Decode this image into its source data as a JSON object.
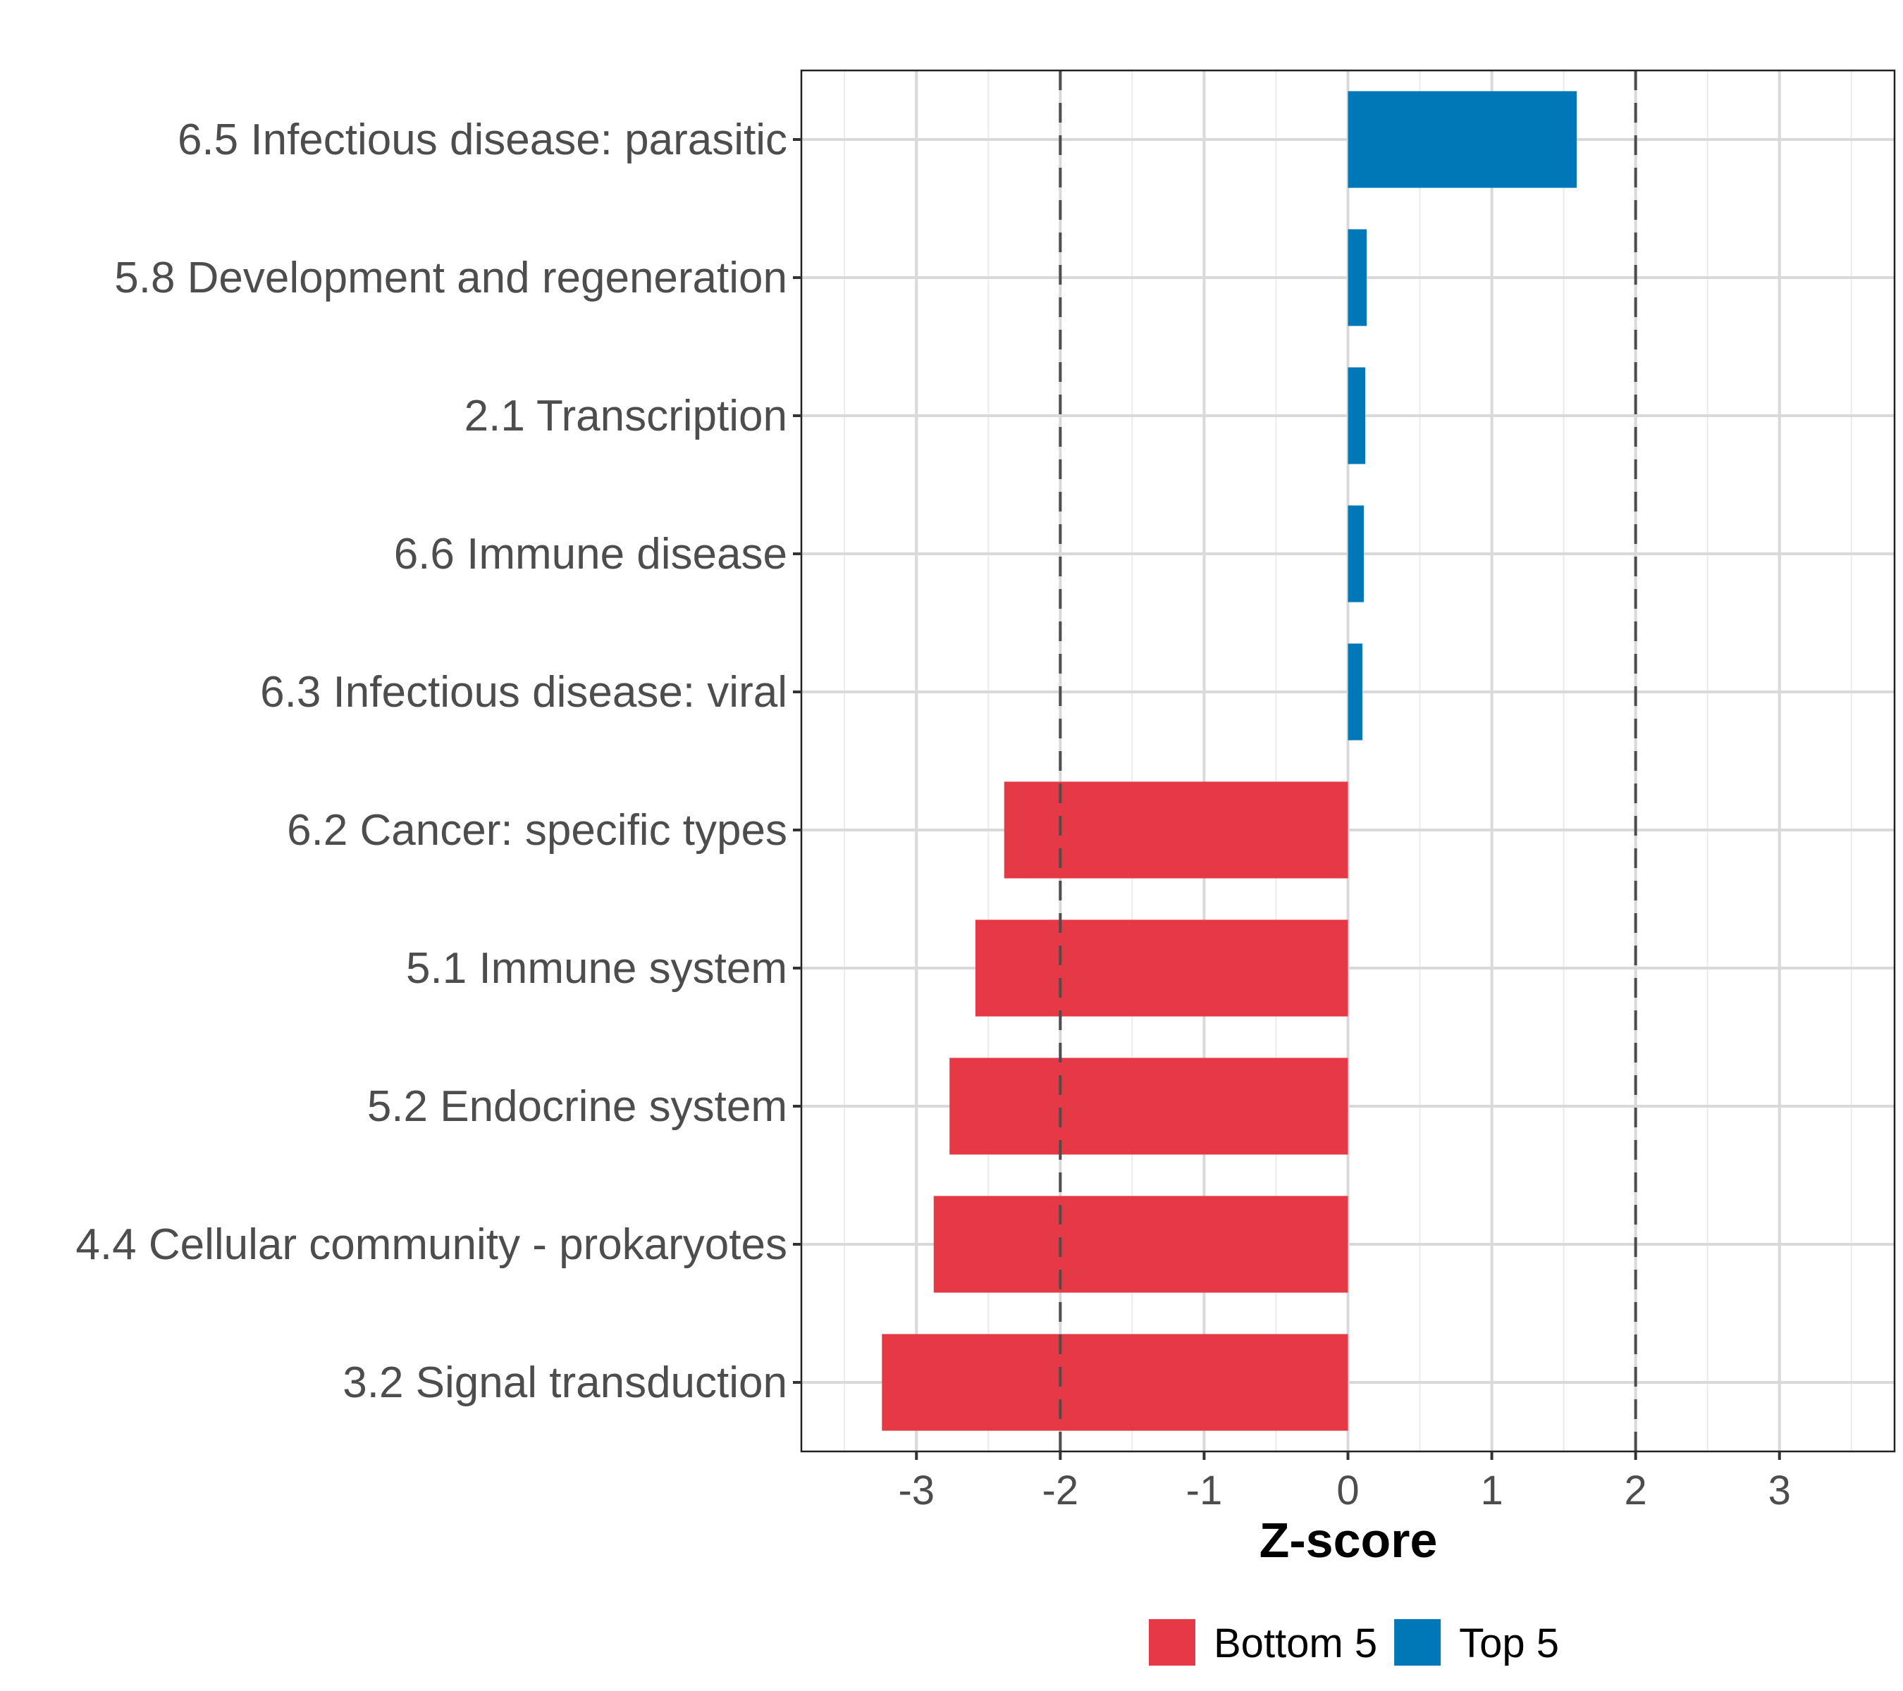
{
  "chart_data": {
    "type": "bar",
    "orientation": "horizontal",
    "title": "",
    "xlabel": "Z-score",
    "ylabel": "",
    "xlim": [
      -3.8,
      3.8
    ],
    "xticks": [
      -3,
      -2,
      -1,
      0,
      1,
      2,
      3
    ],
    "xtick_labels": [
      "-3",
      "-2",
      "-1",
      "0",
      "1",
      "2",
      "3"
    ],
    "grid": true,
    "reference_lines": [
      -2,
      2
    ],
    "categories": [
      "6.5 Infectious disease: parasitic",
      "5.8 Development and regeneration",
      "2.1 Transcription",
      "6.6 Immune disease",
      "6.3 Infectious disease: viral",
      "6.2 Cancer: specific types",
      "5.1 Immune system",
      "5.2 Endocrine system",
      "4.4 Cellular community - prokaryotes",
      "3.2 Signal transduction"
    ],
    "values": [
      1.59,
      0.13,
      0.12,
      0.11,
      0.1,
      -2.39,
      -2.59,
      -2.77,
      -2.88,
      -3.24
    ],
    "groups": [
      "Top 5",
      "Top 5",
      "Top 5",
      "Top 5",
      "Top 5",
      "Bottom 5",
      "Bottom 5",
      "Bottom 5",
      "Bottom 5",
      "Bottom 5"
    ],
    "legend": {
      "position": "bottom",
      "entries": [
        {
          "label": "Bottom 5",
          "color": "#e63946"
        },
        {
          "label": "Top 5",
          "color": "#0077b6"
        }
      ]
    },
    "colors": {
      "Bottom 5": "#e63946",
      "Top 5": "#0077b6"
    }
  }
}
